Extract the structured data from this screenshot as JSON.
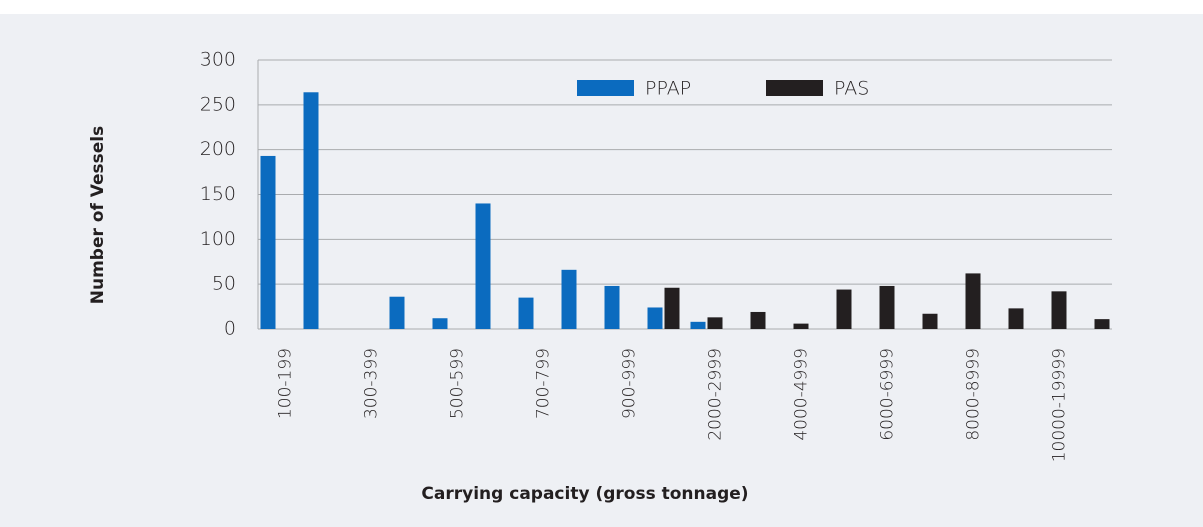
{
  "chart_data": {
    "type": "bar",
    "x_label": "Carrying capacity (gross tonnage)",
    "y_label": "Number of Vessels",
    "categories": [
      "100-199",
      null,
      "300-399",
      null,
      "500-599",
      null,
      "700-799",
      null,
      "900-999",
      null,
      "2000-2999",
      null,
      "4000-4999",
      null,
      "6000-6999",
      null,
      "8000-8999",
      null,
      "10000-19999",
      null
    ],
    "series": [
      {
        "name": "PPAP",
        "color": "#0b6bbf",
        "values": [
          193,
          264,
          0,
          36,
          12,
          140,
          35,
          66,
          48,
          24,
          8,
          0,
          0,
          0,
          0,
          0,
          0,
          0,
          0,
          0
        ]
      },
      {
        "name": "PAS",
        "color": "#231f20",
        "values": [
          0,
          0,
          0,
          0,
          0,
          0,
          0,
          0,
          0,
          46,
          13,
          19,
          6,
          44,
          48,
          17,
          62,
          23,
          42,
          11
        ]
      }
    ],
    "ylim": [
      0,
      300
    ],
    "yticks": [
      0,
      50,
      100,
      150,
      200,
      250,
      300
    ],
    "grid": true,
    "legend": "top"
  }
}
